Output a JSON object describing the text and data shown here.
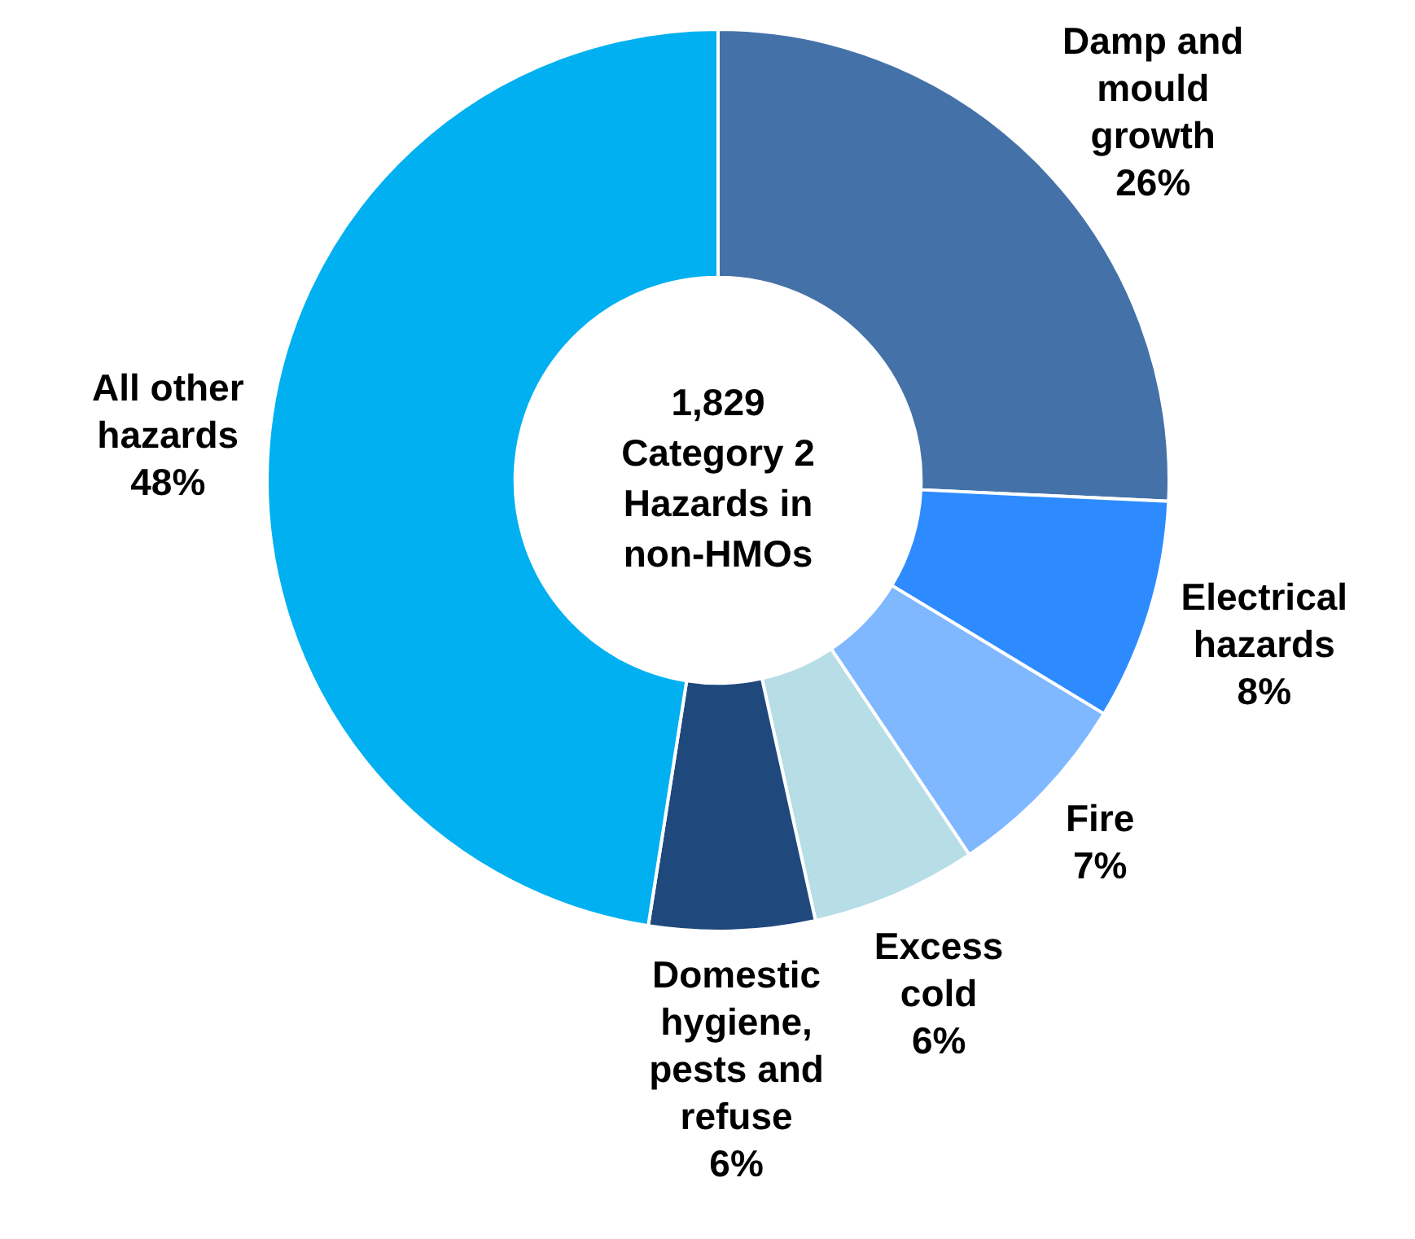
{
  "chart_data": {
    "type": "donut",
    "title": "1,829 Category 2 Hazards in non-HMOs",
    "categories": [
      "Damp and mould growth",
      "Electrical hazards",
      "Fire",
      "Excess cold",
      "Domestic hygiene, pests and refuse",
      "All other hazards"
    ],
    "values": [
      26,
      8,
      7,
      6,
      6,
      48
    ],
    "value_labels": [
      "26%",
      "8%",
      "7%",
      "6%",
      "6%",
      "48%"
    ],
    "colors": [
      "#4472a8",
      "#2e8bff",
      "#80b8ff",
      "#b7dde6",
      "#1f497d",
      "#00b0f0"
    ]
  }
}
